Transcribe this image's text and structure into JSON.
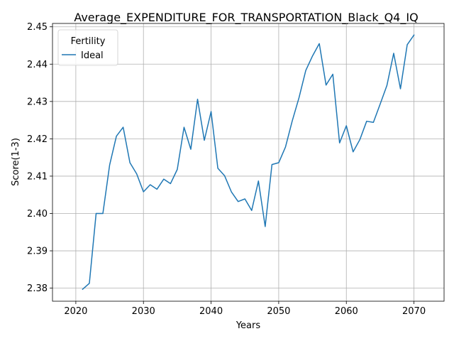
{
  "chart_data": {
    "type": "line",
    "title": "Average_EXPENDITURE_FOR_TRANSPORTATION_Black_Q4_IQ",
    "xlabel": "Years",
    "ylabel": "Score(1-3)",
    "xlim": [
      2016.55,
      2074.45
    ],
    "ylim": [
      2.3765,
      2.4509
    ],
    "xticks": [
      2020,
      2030,
      2040,
      2050,
      2060,
      2070
    ],
    "yticks": [
      2.38,
      2.39,
      2.4,
      2.41,
      2.42,
      2.43,
      2.44,
      2.45
    ],
    "ytick_labels": [
      "2.38",
      "2.39",
      "2.40",
      "2.41",
      "2.42",
      "2.43",
      "2.44",
      "2.45"
    ],
    "grid": true,
    "legend": {
      "title": "Fertility",
      "position": "top-left"
    },
    "series": [
      {
        "name": "Ideal",
        "color": "#1f77b4",
        "x": [
          2021,
          2022,
          2023,
          2024,
          2025,
          2026,
          2027,
          2028,
          2029,
          2030,
          2031,
          2032,
          2033,
          2034,
          2035,
          2036,
          2037,
          2038,
          2039,
          2040,
          2041,
          2042,
          2043,
          2044,
          2045,
          2046,
          2047,
          2048,
          2049,
          2050,
          2051,
          2052,
          2053,
          2054,
          2055,
          2056,
          2057,
          2058,
          2059,
          2060,
          2061,
          2062,
          2063,
          2064,
          2065,
          2066,
          2067,
          2068,
          2069,
          2070
        ],
        "values": [
          2.3797,
          2.3813,
          2.4,
          2.4,
          2.413,
          2.4207,
          2.4231,
          2.4136,
          2.4106,
          2.4058,
          2.4077,
          2.4065,
          2.4092,
          2.408,
          2.4118,
          2.4231,
          2.4172,
          2.4306,
          2.4196,
          2.4273,
          2.4121,
          2.4101,
          2.4058,
          2.4032,
          2.4039,
          2.4008,
          2.4087,
          2.3965,
          2.4131,
          2.4136,
          2.4178,
          2.4248,
          2.431,
          2.4383,
          2.4422,
          2.4455,
          2.4344,
          2.4373,
          2.4189,
          2.4235,
          2.4165,
          2.4198,
          2.4247,
          2.4244,
          2.4293,
          2.4343,
          2.4429,
          2.4334,
          2.4452,
          2.4478
        ]
      }
    ]
  }
}
